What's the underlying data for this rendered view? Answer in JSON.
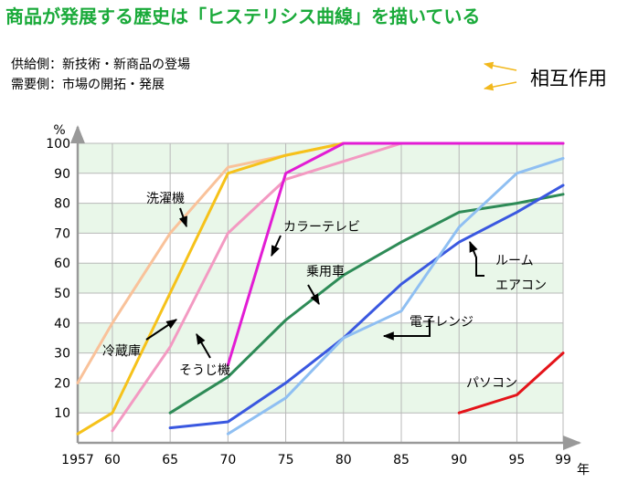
{
  "header": {
    "title": "商品が発展する歴史は「ヒステリシス曲線」を描いている",
    "supply_line": "供給側：新技術・新商品の登場",
    "demand_line": "需要側：市場の開拓・発展",
    "legend_label": "相互作用"
  },
  "chart_data": {
    "type": "line",
    "title": "商品が発展する歴史は「ヒステリシス曲線」を描いている",
    "xlabel": "年",
    "ylabel": "%",
    "x_tick_labels": [
      "1957",
      "60",
      "65",
      "70",
      "75",
      "80",
      "85",
      "90",
      "95",
      "99"
    ],
    "x_ticks": [
      1957,
      1960,
      1965,
      1970,
      1975,
      1980,
      1985,
      1990,
      1995,
      1999
    ],
    "y_tick_labels": [
      "10",
      "20",
      "30",
      "40",
      "50",
      "60",
      "70",
      "80",
      "90",
      "100"
    ],
    "y_ticks": [
      10,
      20,
      30,
      40,
      50,
      60,
      70,
      80,
      90,
      100
    ],
    "xlim": [
      1957,
      1999
    ],
    "ylim": [
      0,
      100
    ],
    "grid": true,
    "series": [
      {
        "name": "洗濯機",
        "color": "#f9c29a",
        "points": [
          [
            1957,
            20
          ],
          [
            1960,
            40
          ],
          [
            1965,
            70
          ],
          [
            1970,
            92
          ],
          [
            1975,
            96
          ],
          [
            1980,
            100
          ],
          [
            1999,
            100
          ]
        ]
      },
      {
        "name": "冷蔵庫",
        "color": "#f6c21a",
        "points": [
          [
            1957,
            3
          ],
          [
            1960,
            10
          ],
          [
            1965,
            50
          ],
          [
            1970,
            90
          ],
          [
            1975,
            96
          ],
          [
            1980,
            100
          ],
          [
            1999,
            100
          ]
        ]
      },
      {
        "name": "そうじ機",
        "color": "#f39ac2",
        "points": [
          [
            1960,
            4
          ],
          [
            1965,
            32
          ],
          [
            1970,
            70
          ],
          [
            1975,
            88
          ],
          [
            1980,
            94
          ],
          [
            1985,
            100
          ],
          [
            1999,
            100
          ]
        ]
      },
      {
        "name": "カラーテレビ",
        "color": "#e21cd4",
        "points": [
          [
            1970,
            26
          ],
          [
            1975,
            90
          ],
          [
            1980,
            100
          ],
          [
            1999,
            100
          ]
        ]
      },
      {
        "name": "乗用車",
        "color": "#2e8b57",
        "points": [
          [
            1965,
            10
          ],
          [
            1970,
            22
          ],
          [
            1975,
            41
          ],
          [
            1980,
            56
          ],
          [
            1985,
            67
          ],
          [
            1990,
            77
          ],
          [
            1995,
            80
          ],
          [
            1999,
            83
          ]
        ]
      },
      {
        "name": "ルーム エアコン",
        "color": "#3a58e0",
        "points": [
          [
            1965,
            5
          ],
          [
            1970,
            7
          ],
          [
            1975,
            20
          ],
          [
            1980,
            35
          ],
          [
            1985,
            53
          ],
          [
            1990,
            67
          ],
          [
            1995,
            77
          ],
          [
            1999,
            86
          ]
        ]
      },
      {
        "name": "電子レンジ",
        "color": "#8fbff2",
        "points": [
          [
            1970,
            3
          ],
          [
            1975,
            15
          ],
          [
            1980,
            35
          ],
          [
            1985,
            44
          ],
          [
            1990,
            72
          ],
          [
            1995,
            90
          ],
          [
            1999,
            95
          ]
        ]
      },
      {
        "name": "パソコン",
        "color": "#e4141a",
        "points": [
          [
            1990,
            10
          ],
          [
            1995,
            16
          ],
          [
            1999,
            30
          ]
        ]
      }
    ]
  }
}
